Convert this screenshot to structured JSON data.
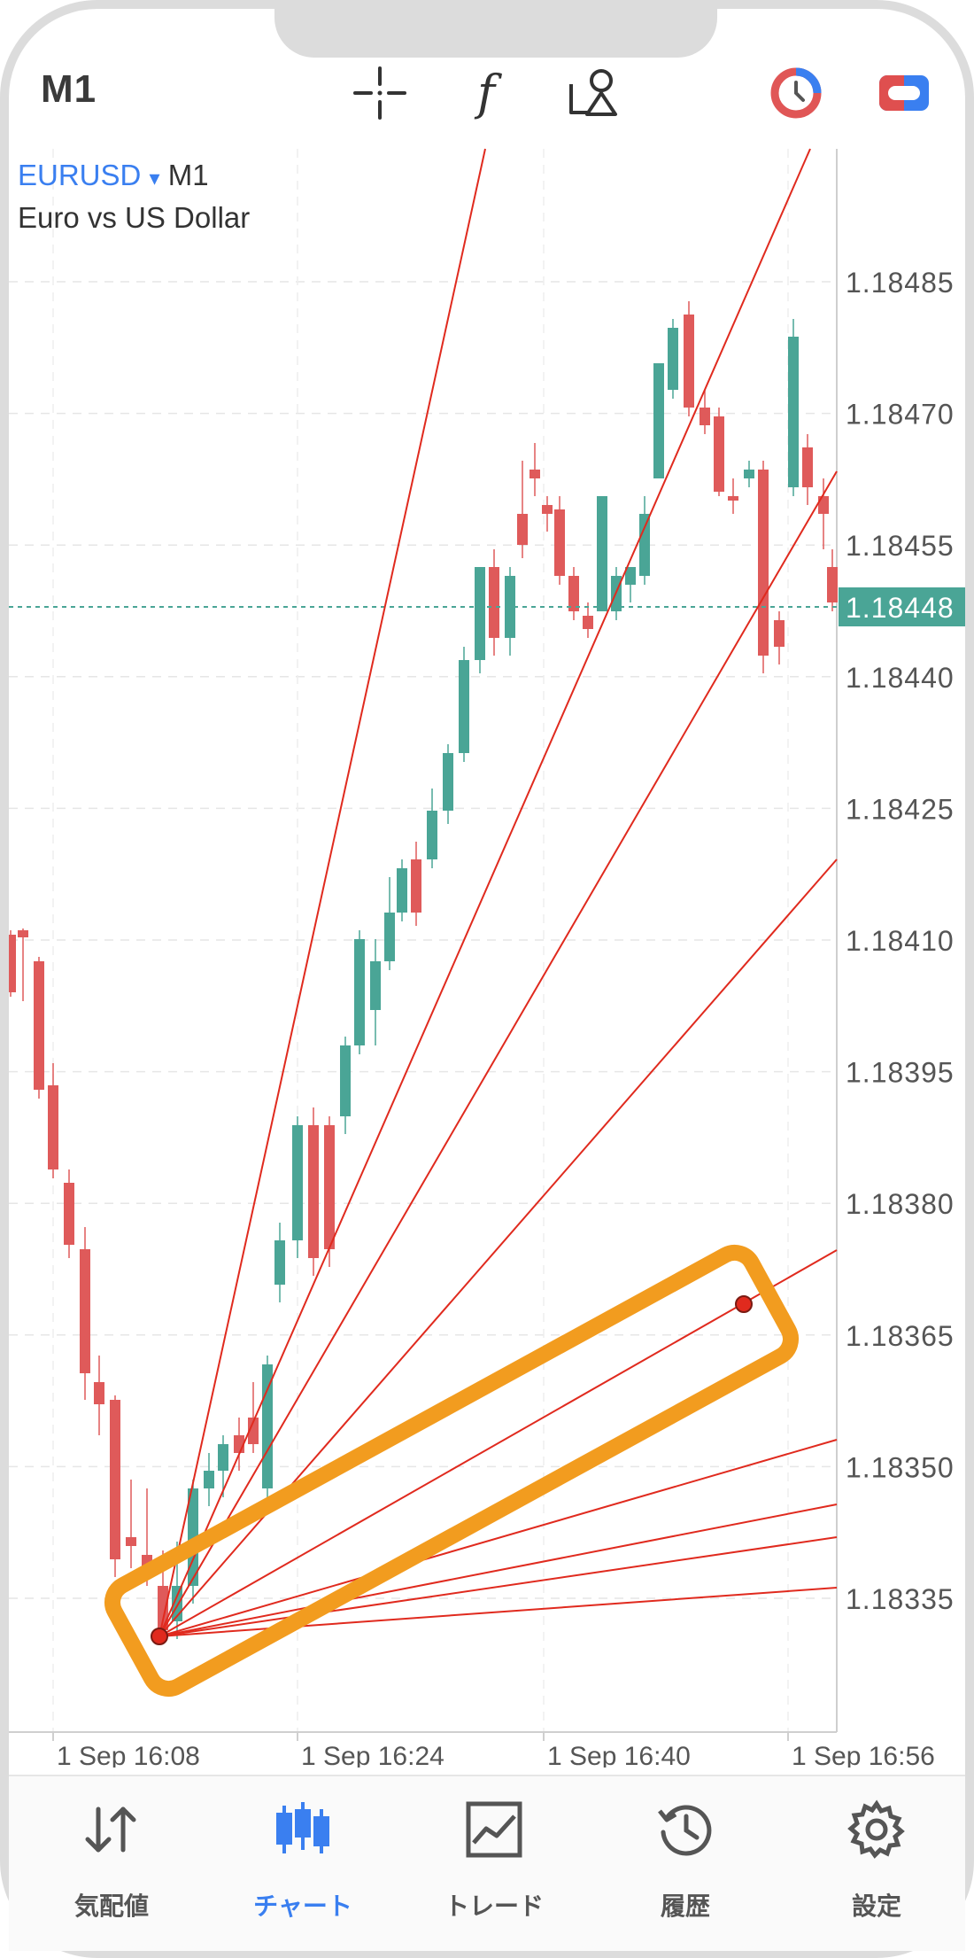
{
  "toolbar": {
    "timeframe": "M1",
    "icons": [
      "crosshair-icon",
      "indicators-icon",
      "objects-icon",
      "timer-icon",
      "account-toggle-icon"
    ]
  },
  "symbol": {
    "name": "EURUSD",
    "arrow": "▾",
    "period": "M1",
    "description": "Euro vs US Dollar"
  },
  "price_axis": {
    "labels": [
      "1.18485",
      "1.18470",
      "1.18455",
      "1.18440",
      "1.18425",
      "1.18410",
      "1.18395",
      "1.18380",
      "1.18365",
      "1.18350",
      "1.18335"
    ],
    "current_price": "1.18448"
  },
  "time_axis": {
    "labels": [
      "1 Sep 16:08",
      "1 Sep 16:24",
      "1 Sep 16:40",
      "1 Sep 16:56"
    ]
  },
  "colors": {
    "bull": "#4aa596",
    "bear": "#df5a5a",
    "fan_lines": "#e02a1e",
    "highlight": "#f29c1f",
    "accent": "#3a7ff0",
    "current_price_bg": "#4aa596"
  },
  "nav": {
    "items": [
      {
        "label": "気配値",
        "icon": "quotes-icon"
      },
      {
        "label": "チャート",
        "icon": "chart-icon",
        "active": true
      },
      {
        "label": "トレード",
        "icon": "trade-icon"
      },
      {
        "label": "履歴",
        "icon": "history-icon"
      },
      {
        "label": "設定",
        "icon": "settings-icon"
      }
    ]
  }
}
